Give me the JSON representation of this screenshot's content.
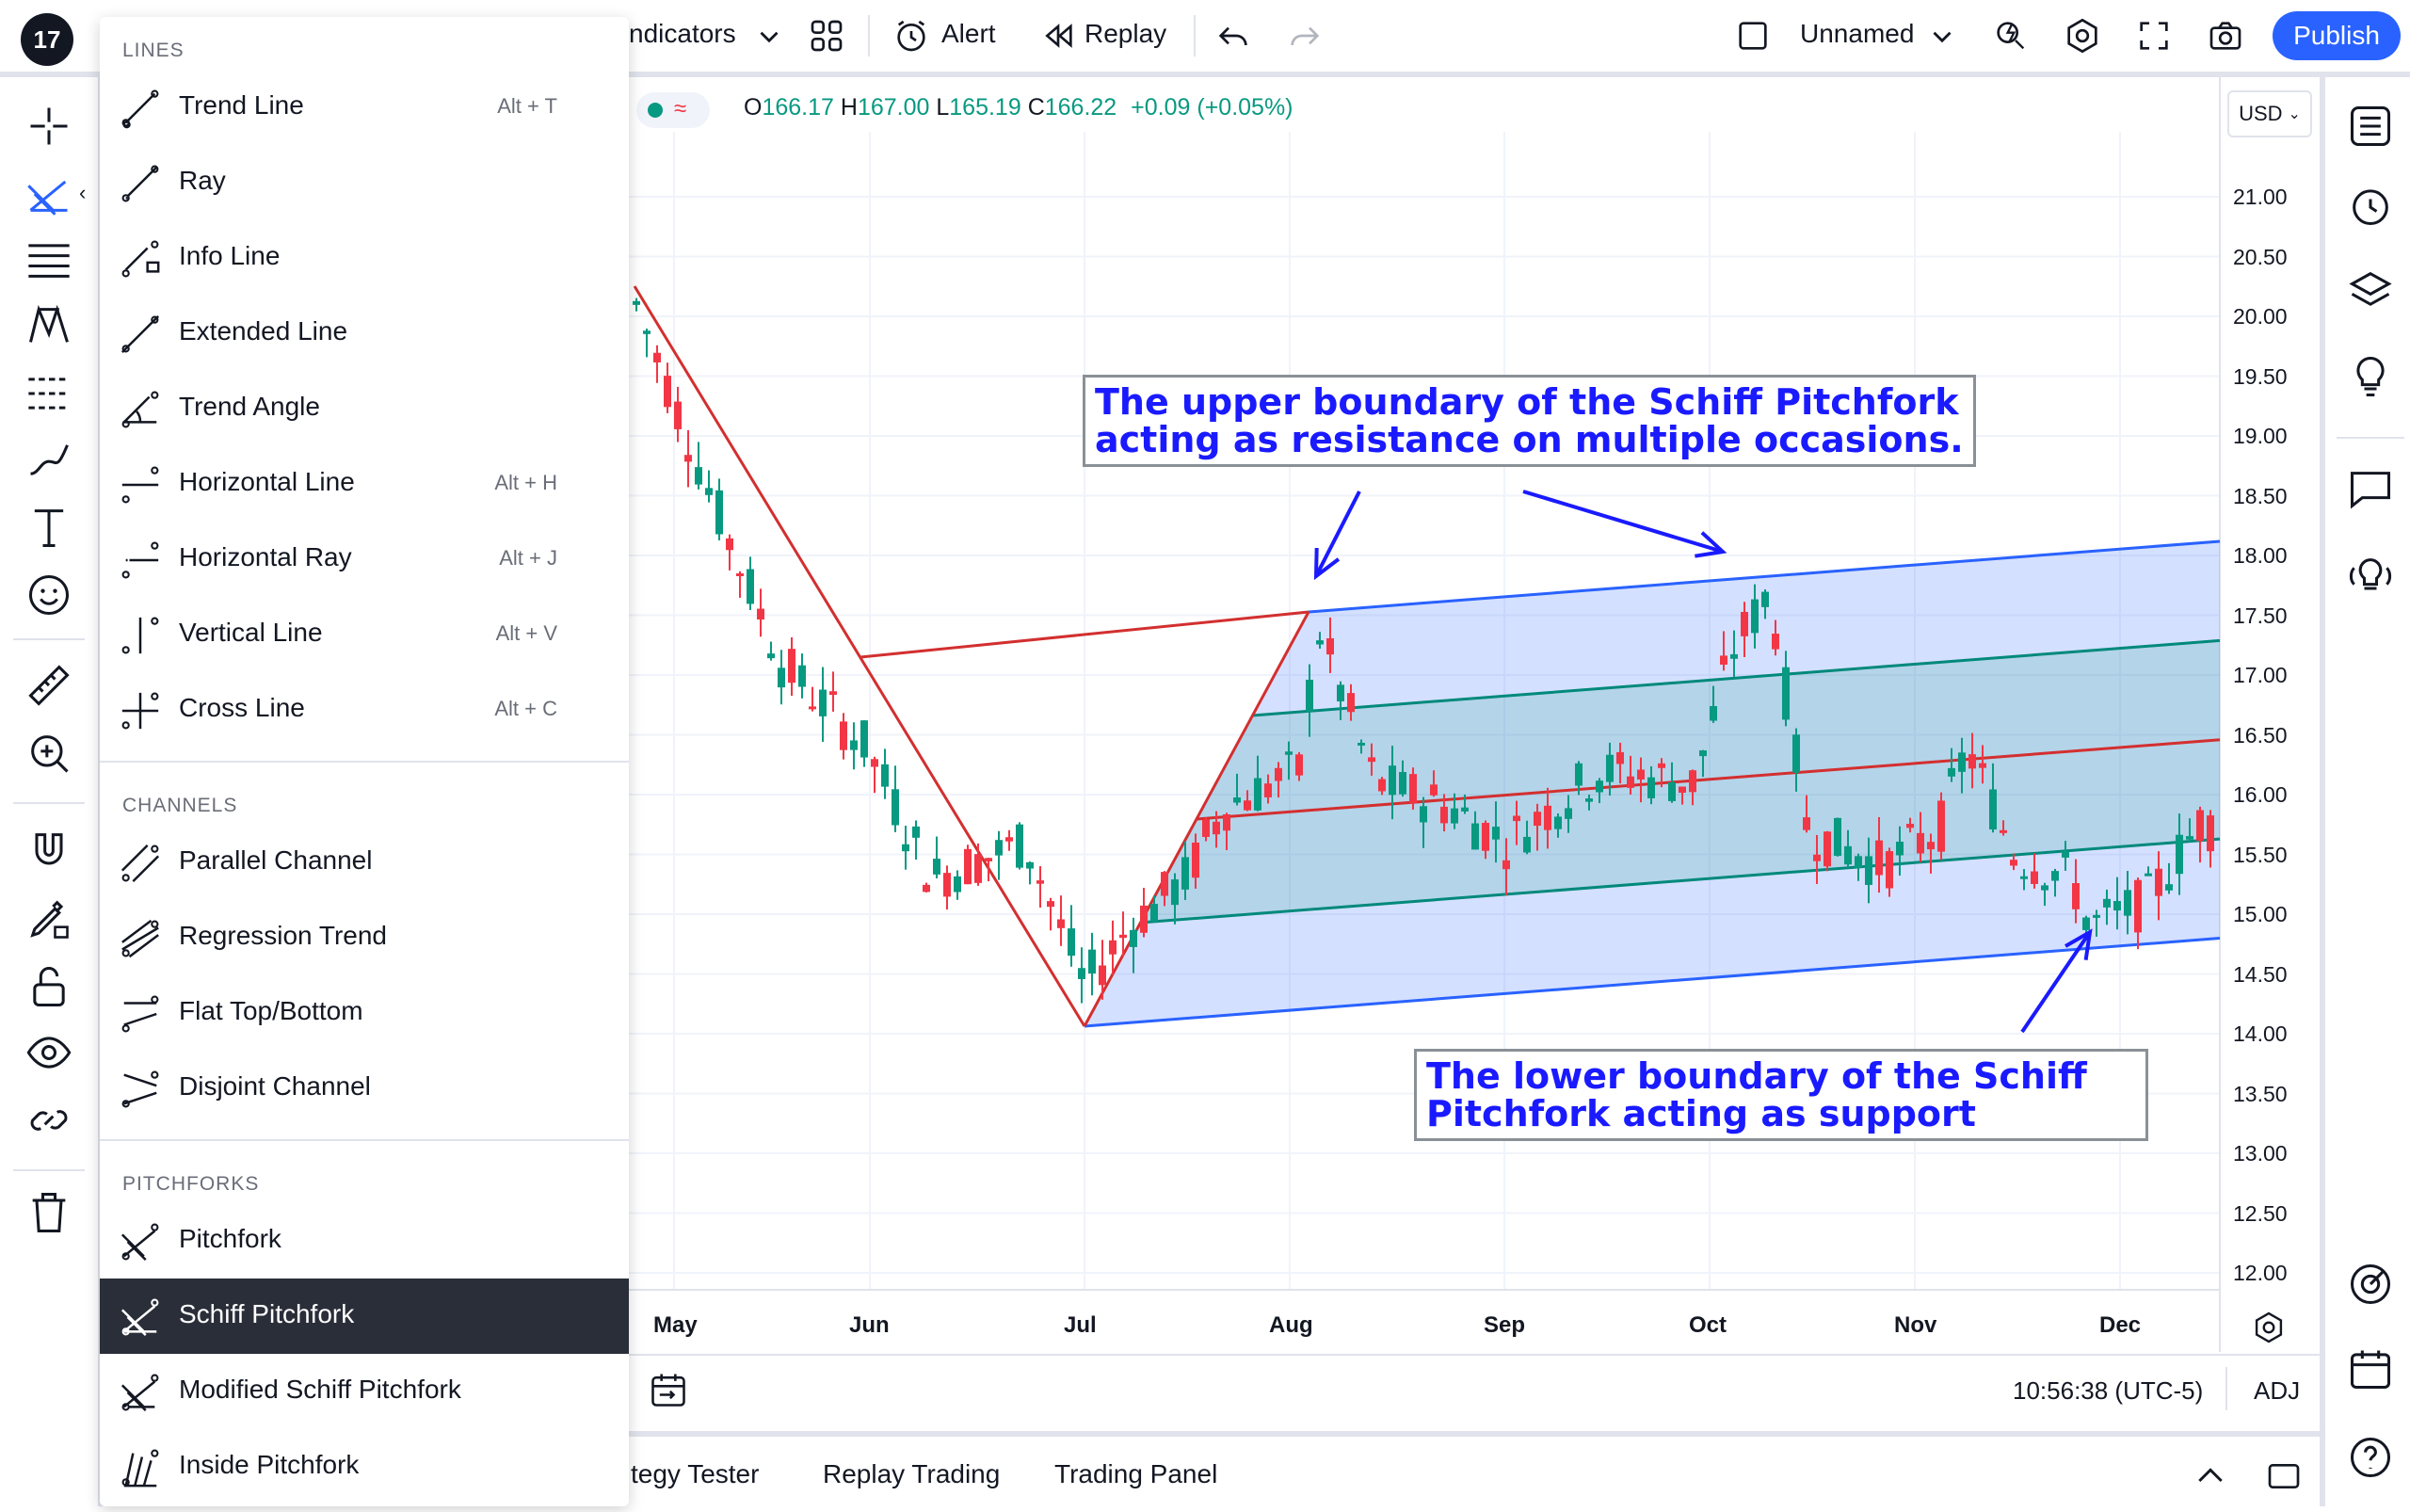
{
  "topbar": {
    "indicators_label": "ndicators",
    "alert_label": "Alert",
    "replay_label": "Replay",
    "layout_name": "Unnamed",
    "publish_label": "Publish"
  },
  "legend": {
    "o_label": "O",
    "o_value": "166.17",
    "h_label": "H",
    "h_value": "167.00",
    "l_label": "L",
    "l_value": "165.19",
    "c_label": "C",
    "c_value": "166.22",
    "change": "+0.09 (+0.05%)"
  },
  "currency": "USD",
  "price_axis": [
    "21.00",
    "20.50",
    "20.00",
    "19.50",
    "19.00",
    "18.50",
    "18.00",
    "17.50",
    "17.00",
    "16.50",
    "16.00",
    "15.50",
    "15.00",
    "14.50",
    "14.00",
    "13.50",
    "13.00",
    "12.50",
    "12.00"
  ],
  "time_axis": [
    "May",
    "Jun",
    "Jul",
    "Aug",
    "Sep",
    "Oct",
    "Nov",
    "Dec"
  ],
  "annotations": {
    "upper": [
      "The upper boundary of the Schiff Pitchfork",
      "acting as resistance on multiple occasions."
    ],
    "lower": [
      "The lower boundary of the Schiff",
      "Pitchfork acting as support"
    ]
  },
  "status": {
    "time": "10:56:38 (UTC-5)",
    "adj": "ADJ"
  },
  "bottom_tabs": [
    "tegy Tester",
    "Replay Trading",
    "Trading Panel"
  ],
  "menu": {
    "sections": [
      {
        "title": "LINES",
        "items": [
          {
            "label": "Trend Line",
            "key": "Alt + T",
            "icon": "trend-line-icon"
          },
          {
            "label": "Ray",
            "key": "",
            "icon": "ray-icon"
          },
          {
            "label": "Info Line",
            "key": "",
            "icon": "info-line-icon"
          },
          {
            "label": "Extended Line",
            "key": "",
            "icon": "extended-line-icon"
          },
          {
            "label": "Trend Angle",
            "key": "",
            "icon": "trend-angle-icon"
          },
          {
            "label": "Horizontal Line",
            "key": "Alt + H",
            "icon": "horizontal-line-icon"
          },
          {
            "label": "Horizontal Ray",
            "key": "Alt + J",
            "icon": "horizontal-ray-icon"
          },
          {
            "label": "Vertical Line",
            "key": "Alt + V",
            "icon": "vertical-line-icon"
          },
          {
            "label": "Cross Line",
            "key": "Alt + C",
            "icon": "cross-line-icon"
          }
        ]
      },
      {
        "title": "CHANNELS",
        "items": [
          {
            "label": "Parallel Channel",
            "key": "",
            "icon": "parallel-channel-icon"
          },
          {
            "label": "Regression Trend",
            "key": "",
            "icon": "regression-trend-icon"
          },
          {
            "label": "Flat Top/Bottom",
            "key": "",
            "icon": "flat-top-bottom-icon"
          },
          {
            "label": "Disjoint Channel",
            "key": "",
            "icon": "disjoint-channel-icon"
          }
        ]
      },
      {
        "title": "PITCHFORKS",
        "items": [
          {
            "label": "Pitchfork",
            "key": "",
            "icon": "pitchfork-icon"
          },
          {
            "label": "Schiff Pitchfork",
            "key": "",
            "icon": "schiff-pitchfork-icon",
            "active": true
          },
          {
            "label": "Modified Schiff Pitchfork",
            "key": "",
            "icon": "modified-schiff-pitchfork-icon"
          },
          {
            "label": "Inside Pitchfork",
            "key": "",
            "icon": "inside-pitchfork-icon"
          }
        ]
      }
    ]
  },
  "colors": {
    "up": "#089981",
    "down": "#f23645",
    "pitchfork_outer": "#2962ff",
    "pitchfork_inner": "#00897b",
    "median": "#d32f2f",
    "accent": "#2962ff",
    "annotation": "#1a1aff"
  }
}
